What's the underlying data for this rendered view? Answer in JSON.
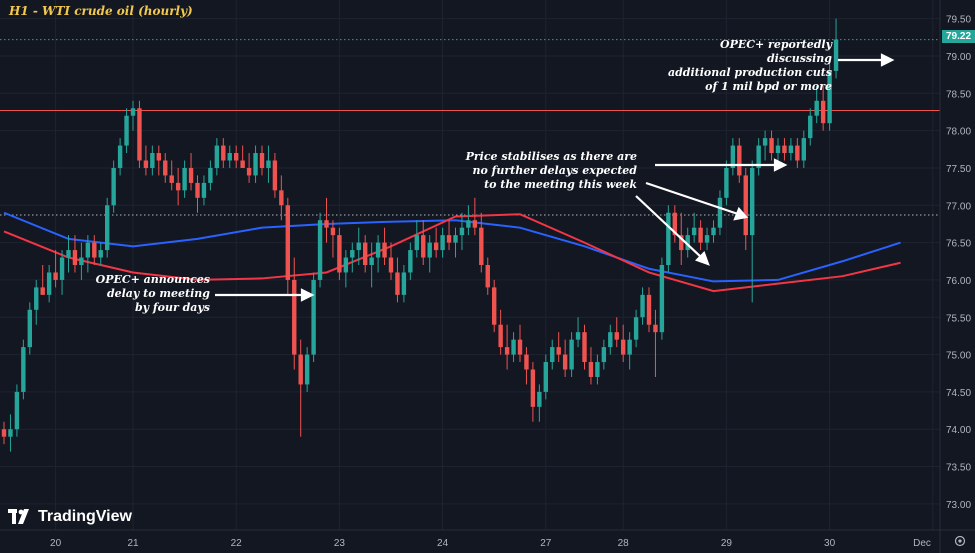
{
  "header": {
    "title": "H1 - WTI crude oil (hourly)"
  },
  "branding": {
    "logo_text": "TradingView",
    "logo_icon": "tradingview-logo-icon"
  },
  "annotations": {
    "opec_cuts": [
      "OPEC+ reportedly discussing",
      "additional production cuts",
      "of 1 mil bpd or more"
    ],
    "stabilise": [
      "Price stabilises as there are",
      "no further delays expected",
      "to the meeting this week"
    ],
    "delay": [
      "OPEC+ announces",
      "delay to meeting",
      "by four days"
    ]
  },
  "last_price": {
    "label": "79.22",
    "value": 79.22,
    "color": "#26a69a"
  },
  "colors": {
    "up": "#26a69a",
    "down": "#ef5350",
    "ma_red": "#f23645",
    "ma_blue": "#2962ff",
    "resistance": "#ef5350",
    "support": "#b2b5be",
    "background": "#131722"
  },
  "chart_data": {
    "type": "candlestick",
    "title": "H1 - WTI crude oil (hourly)",
    "ylim": [
      72.65,
      79.75
    ],
    "xlim": [
      0,
      140
    ],
    "y_ticks": [
      "79.50",
      "79.00",
      "78.50",
      "78.00",
      "77.50",
      "77.00",
      "76.50",
      "76.00",
      "75.50",
      "75.00",
      "74.50",
      "74.00",
      "73.50",
      "73.00"
    ],
    "y_tick_values": [
      79.5,
      79.0,
      78.5,
      78.0,
      77.5,
      77.0,
      76.5,
      76.0,
      75.5,
      75.0,
      74.5,
      74.0,
      73.5,
      73.0
    ],
    "x_ticks": [
      {
        "label": "20",
        "index": 8
      },
      {
        "label": "21",
        "index": 20
      },
      {
        "label": "22",
        "index": 36
      },
      {
        "label": "23",
        "index": 52
      },
      {
        "label": "24",
        "index": 68
      },
      {
        "label": "27",
        "index": 84
      },
      {
        "label": "28",
        "index": 96
      },
      {
        "label": "29",
        "index": 112
      },
      {
        "label": "30",
        "index": 128
      },
      {
        "label": "Dec",
        "index": 144
      }
    ],
    "horizontal_lines": [
      {
        "name": "resistance",
        "value": 78.27,
        "style": "solid",
        "color": "#ef5350"
      },
      {
        "name": "support",
        "value": 76.87,
        "style": "dotted",
        "color": "#b2b5be"
      },
      {
        "name": "last-price",
        "value": 79.22,
        "style": "dotted",
        "color": "#26a69a"
      }
    ],
    "candles": [
      [
        74.0,
        74.1,
        73.8,
        73.9
      ],
      [
        73.9,
        74.2,
        73.7,
        74.0
      ],
      [
        74.0,
        74.6,
        73.9,
        74.5
      ],
      [
        74.5,
        75.2,
        74.4,
        75.1
      ],
      [
        75.1,
        75.7,
        75.0,
        75.6
      ],
      [
        75.6,
        76.0,
        75.4,
        75.9
      ],
      [
        75.9,
        76.2,
        75.8,
        75.8
      ],
      [
        75.8,
        76.2,
        75.7,
        76.1
      ],
      [
        76.1,
        76.4,
        75.9,
        76.0
      ],
      [
        76.0,
        76.4,
        75.8,
        76.3
      ],
      [
        76.3,
        76.6,
        76.1,
        76.4
      ],
      [
        76.4,
        76.6,
        76.1,
        76.2
      ],
      [
        76.2,
        76.5,
        76.0,
        76.3
      ],
      [
        76.3,
        76.6,
        76.1,
        76.5
      ],
      [
        76.5,
        76.6,
        76.2,
        76.3
      ],
      [
        76.3,
        76.5,
        76.2,
        76.4
      ],
      [
        76.4,
        77.1,
        76.3,
        77.0
      ],
      [
        77.0,
        77.6,
        76.9,
        77.5
      ],
      [
        77.5,
        77.9,
        77.4,
        77.8
      ],
      [
        77.8,
        78.3,
        77.7,
        78.2
      ],
      [
        78.2,
        78.4,
        78.0,
        78.3
      ],
      [
        78.3,
        78.4,
        77.5,
        77.6
      ],
      [
        77.6,
        77.8,
        77.4,
        77.5
      ],
      [
        77.5,
        77.8,
        77.4,
        77.7
      ],
      [
        77.7,
        77.8,
        77.4,
        77.6
      ],
      [
        77.6,
        77.7,
        77.3,
        77.4
      ],
      [
        77.4,
        77.6,
        77.2,
        77.3
      ],
      [
        77.3,
        77.5,
        77.0,
        77.2
      ],
      [
        77.2,
        77.6,
        77.1,
        77.5
      ],
      [
        77.5,
        77.7,
        77.2,
        77.3
      ],
      [
        77.3,
        77.4,
        76.9,
        77.1
      ],
      [
        77.1,
        77.4,
        77.0,
        77.3
      ],
      [
        77.3,
        77.6,
        77.2,
        77.5
      ],
      [
        77.5,
        77.9,
        77.4,
        77.8
      ],
      [
        77.8,
        77.9,
        77.5,
        77.6
      ],
      [
        77.6,
        77.8,
        77.5,
        77.7
      ],
      [
        77.7,
        77.8,
        77.5,
        77.6
      ],
      [
        77.6,
        77.8,
        77.5,
        77.5
      ],
      [
        77.5,
        77.7,
        77.3,
        77.4
      ],
      [
        77.4,
        77.8,
        77.3,
        77.7
      ],
      [
        77.7,
        77.8,
        77.4,
        77.5
      ],
      [
        77.5,
        77.8,
        77.3,
        77.6
      ],
      [
        77.6,
        77.7,
        77.1,
        77.2
      ],
      [
        77.2,
        77.4,
        76.8,
        77.0
      ],
      [
        77.0,
        77.1,
        75.8,
        76.0
      ],
      [
        76.0,
        76.3,
        74.8,
        75.0
      ],
      [
        75.0,
        75.2,
        73.9,
        74.6
      ],
      [
        74.6,
        75.1,
        74.5,
        75.0
      ],
      [
        75.0,
        76.1,
        74.9,
        76.0
      ],
      [
        76.0,
        76.9,
        75.9,
        76.8
      ],
      [
        76.8,
        77.1,
        76.5,
        76.7
      ],
      [
        76.7,
        76.8,
        76.3,
        76.6
      ],
      [
        76.6,
        76.7,
        76.0,
        76.1
      ],
      [
        76.1,
        76.4,
        75.9,
        76.3
      ],
      [
        76.3,
        76.5,
        76.1,
        76.4
      ],
      [
        76.4,
        76.7,
        76.2,
        76.5
      ],
      [
        76.5,
        76.6,
        76.1,
        76.2
      ],
      [
        76.2,
        76.5,
        75.9,
        76.3
      ],
      [
        76.3,
        76.6,
        76.1,
        76.5
      ],
      [
        76.5,
        76.7,
        76.2,
        76.3
      ],
      [
        76.3,
        76.5,
        76.0,
        76.1
      ],
      [
        76.1,
        76.3,
        75.7,
        75.8
      ],
      [
        75.8,
        76.2,
        75.7,
        76.1
      ],
      [
        76.1,
        76.5,
        76.0,
        76.4
      ],
      [
        76.4,
        76.8,
        76.3,
        76.6
      ],
      [
        76.6,
        76.8,
        76.2,
        76.3
      ],
      [
        76.3,
        76.6,
        76.1,
        76.5
      ],
      [
        76.5,
        76.7,
        76.3,
        76.4
      ],
      [
        76.4,
        76.7,
        76.3,
        76.6
      ],
      [
        76.6,
        76.8,
        76.4,
        76.5
      ],
      [
        76.5,
        76.7,
        76.3,
        76.6
      ],
      [
        76.6,
        76.9,
        76.4,
        76.7
      ],
      [
        76.7,
        77.0,
        76.6,
        76.8
      ],
      [
        76.8,
        77.1,
        76.6,
        76.7
      ],
      [
        76.7,
        76.9,
        76.1,
        76.2
      ],
      [
        76.2,
        76.3,
        75.8,
        75.9
      ],
      [
        75.9,
        76.0,
        75.3,
        75.4
      ],
      [
        75.4,
        75.6,
        75.0,
        75.1
      ],
      [
        75.1,
        75.4,
        74.8,
        75.0
      ],
      [
        75.0,
        75.3,
        74.9,
        75.2
      ],
      [
        75.2,
        75.4,
        74.9,
        75.0
      ],
      [
        75.0,
        75.1,
        74.6,
        74.8
      ],
      [
        74.8,
        74.9,
        74.1,
        74.3
      ],
      [
        74.3,
        74.6,
        74.1,
        74.5
      ],
      [
        74.5,
        75.0,
        74.4,
        74.9
      ],
      [
        74.9,
        75.2,
        74.8,
        75.1
      ],
      [
        75.1,
        75.3,
        74.9,
        75.0
      ],
      [
        75.0,
        75.2,
        74.7,
        74.8
      ],
      [
        74.8,
        75.3,
        74.7,
        75.2
      ],
      [
        75.2,
        75.5,
        75.1,
        75.3
      ],
      [
        75.3,
        75.4,
        74.8,
        74.9
      ],
      [
        74.9,
        75.1,
        74.6,
        74.7
      ],
      [
        74.7,
        75.0,
        74.6,
        74.9
      ],
      [
        74.9,
        75.2,
        74.8,
        75.1
      ],
      [
        75.1,
        75.4,
        75.0,
        75.3
      ],
      [
        75.3,
        75.5,
        75.1,
        75.2
      ],
      [
        75.2,
        75.4,
        74.9,
        75.0
      ],
      [
        75.0,
        75.3,
        74.8,
        75.2
      ],
      [
        75.2,
        75.6,
        75.1,
        75.5
      ],
      [
        75.5,
        75.9,
        75.4,
        75.8
      ],
      [
        75.8,
        75.9,
        75.3,
        75.4
      ],
      [
        75.4,
        75.6,
        74.7,
        75.3
      ],
      [
        75.3,
        76.3,
        75.2,
        76.2
      ],
      [
        76.2,
        77.0,
        76.1,
        76.9
      ],
      [
        76.9,
        77.0,
        76.5,
        76.6
      ],
      [
        76.6,
        76.9,
        76.2,
        76.4
      ],
      [
        76.4,
        76.7,
        76.3,
        76.6
      ],
      [
        76.6,
        76.9,
        76.5,
        76.7
      ],
      [
        76.7,
        76.8,
        76.4,
        76.5
      ],
      [
        76.5,
        76.7,
        76.4,
        76.6
      ],
      [
        76.6,
        76.8,
        76.5,
        76.7
      ],
      [
        76.7,
        77.2,
        76.6,
        77.1
      ],
      [
        77.1,
        77.6,
        77.0,
        77.5
      ],
      [
        77.5,
        77.9,
        77.4,
        77.8
      ],
      [
        77.8,
        77.9,
        77.3,
        77.4
      ],
      [
        77.4,
        77.5,
        76.4,
        76.6
      ],
      [
        76.6,
        77.6,
        75.7,
        77.5
      ],
      [
        77.5,
        77.9,
        77.4,
        77.8
      ],
      [
        77.8,
        78.0,
        77.6,
        77.9
      ],
      [
        77.9,
        78.0,
        77.6,
        77.7
      ],
      [
        77.7,
        77.9,
        77.6,
        77.8
      ],
      [
        77.8,
        77.9,
        77.6,
        77.7
      ],
      [
        77.7,
        77.9,
        77.6,
        77.8
      ],
      [
        77.8,
        77.9,
        77.5,
        77.6
      ],
      [
        77.6,
        78.0,
        77.5,
        77.9
      ],
      [
        77.9,
        78.3,
        77.8,
        78.2
      ],
      [
        78.2,
        78.6,
        78.1,
        78.4
      ],
      [
        78.4,
        78.6,
        78.0,
        78.1
      ],
      [
        78.1,
        78.9,
        78.0,
        78.8
      ],
      [
        78.8,
        79.5,
        78.7,
        79.22
      ]
    ],
    "series": [
      {
        "kind": "moving-average",
        "color": "#2962ff",
        "x": [
          0,
          10,
          20,
          30,
          40,
          50,
          60,
          70,
          80,
          90,
          100,
          110,
          120,
          130,
          139
        ],
        "values": [
          76.9,
          76.55,
          76.45,
          76.55,
          76.7,
          76.75,
          76.78,
          76.8,
          76.7,
          76.45,
          76.15,
          75.98,
          76.0,
          76.25,
          76.5
        ]
      },
      {
        "kind": "moving-average",
        "color": "#f23645",
        "x": [
          0,
          10,
          20,
          30,
          40,
          50,
          60,
          70,
          80,
          90,
          100,
          110,
          120,
          130,
          139
        ],
        "values": [
          76.65,
          76.3,
          76.1,
          76.0,
          76.02,
          76.1,
          76.45,
          76.85,
          76.88,
          76.5,
          76.1,
          75.85,
          75.95,
          76.05,
          76.23
        ]
      }
    ]
  }
}
